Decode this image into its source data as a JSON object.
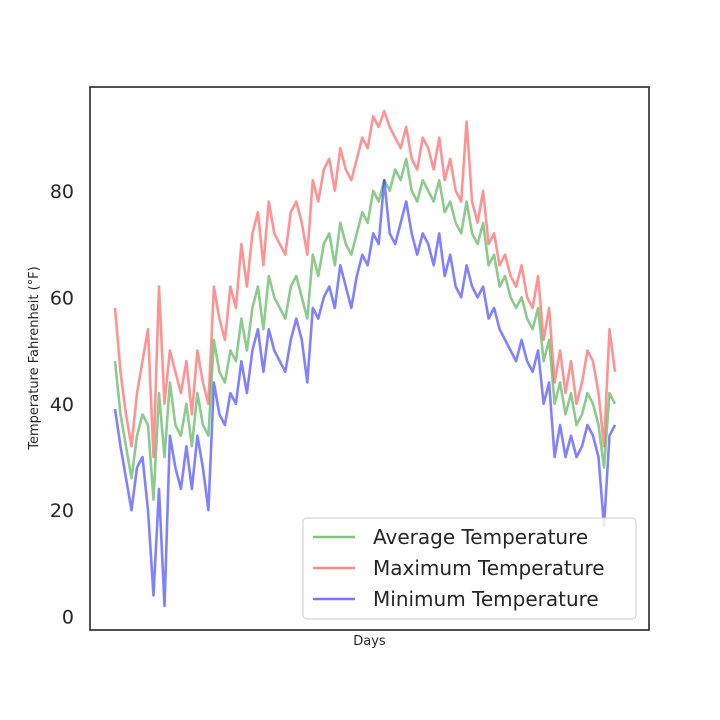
{
  "chart_data": {
    "type": "line",
    "title": "",
    "xlabel": "Days",
    "ylabel": "Temperature Fahrenheit (°F)",
    "ylim": [
      -2.5,
      99.5
    ],
    "yticks": [
      0,
      20,
      40,
      60,
      80
    ],
    "ytick_labels": [
      "0",
      "20",
      "40",
      "60",
      "80"
    ],
    "xticks_visible": false,
    "grid": false,
    "legend_position": "lower-right",
    "x": [
      0,
      4,
      8,
      12,
      16,
      20,
      24,
      28,
      32,
      36,
      40,
      44,
      48,
      52,
      56,
      60,
      64,
      68,
      72,
      76,
      80,
      84,
      88,
      92,
      96,
      100,
      104,
      108,
      112,
      116,
      120,
      124,
      128,
      132,
      136,
      140,
      144,
      148,
      152,
      156,
      160,
      164,
      168,
      172,
      176,
      180,
      184,
      188,
      192,
      196,
      200,
      204,
      208,
      212,
      216,
      220,
      224,
      228,
      232,
      236,
      240,
      244,
      248,
      252,
      256,
      260,
      264,
      268,
      272,
      276,
      280,
      284,
      288,
      292,
      296,
      300,
      304,
      308,
      312,
      316,
      320,
      324,
      328,
      332,
      336,
      340,
      344,
      348,
      352,
      356,
      360,
      364
    ],
    "series": [
      {
        "name": "Average Temperature",
        "color": "#2ca02c",
        "values": [
          48,
          38,
          32,
          26,
          34,
          38,
          36,
          22,
          42,
          30,
          44,
          36,
          34,
          40,
          32,
          42,
          36,
          34,
          52,
          46,
          44,
          50,
          48,
          56,
          50,
          58,
          62,
          54,
          64,
          60,
          58,
          56,
          62,
          64,
          60,
          56,
          68,
          64,
          70,
          72,
          66,
          74,
          70,
          68,
          72,
          76,
          74,
          80,
          78,
          82,
          80,
          84,
          82,
          86,
          80,
          78,
          82,
          80,
          78,
          82,
          76,
          78,
          74,
          72,
          78,
          72,
          70,
          74,
          66,
          68,
          62,
          64,
          60,
          58,
          60,
          56,
          54,
          58,
          48,
          52,
          40,
          44,
          38,
          42,
          36,
          38,
          42,
          40,
          36,
          28,
          42,
          40
        ]
      },
      {
        "name": "Maximum Temperature",
        "color": "#ff3a3a",
        "values": [
          58,
          46,
          38,
          32,
          42,
          48,
          54,
          30,
          62,
          40,
          50,
          46,
          42,
          48,
          38,
          50,
          44,
          40,
          62,
          56,
          52,
          62,
          58,
          70,
          62,
          72,
          76,
          66,
          78,
          72,
          70,
          68,
          76,
          78,
          74,
          68,
          82,
          78,
          84,
          86,
          80,
          88,
          84,
          82,
          86,
          90,
          88,
          94,
          92,
          95,
          92,
          90,
          88,
          92,
          86,
          84,
          90,
          88,
          84,
          90,
          82,
          86,
          80,
          78,
          93,
          78,
          74,
          80,
          70,
          72,
          66,
          68,
          64,
          62,
          66,
          60,
          58,
          64,
          52,
          58,
          44,
          50,
          42,
          48,
          40,
          44,
          50,
          48,
          42,
          32,
          54,
          46
        ]
      },
      {
        "name": "Minimum Temperature",
        "color": "#1a1aff",
        "values": [
          39,
          32,
          26,
          20,
          28,
          30,
          20,
          4,
          24,
          2,
          34,
          28,
          24,
          32,
          24,
          34,
          28,
          20,
          44,
          38,
          36,
          42,
          40,
          48,
          42,
          50,
          54,
          46,
          54,
          50,
          48,
          46,
          52,
          56,
          52,
          44,
          58,
          56,
          60,
          62,
          58,
          66,
          62,
          58,
          64,
          68,
          66,
          72,
          70,
          82,
          72,
          70,
          74,
          78,
          72,
          68,
          72,
          70,
          66,
          72,
          64,
          68,
          62,
          60,
          66,
          62,
          60,
          62,
          56,
          58,
          54,
          52,
          50,
          48,
          52,
          48,
          46,
          50,
          40,
          44,
          30,
          36,
          30,
          34,
          30,
          32,
          36,
          34,
          30,
          17,
          34,
          36
        ]
      }
    ]
  }
}
